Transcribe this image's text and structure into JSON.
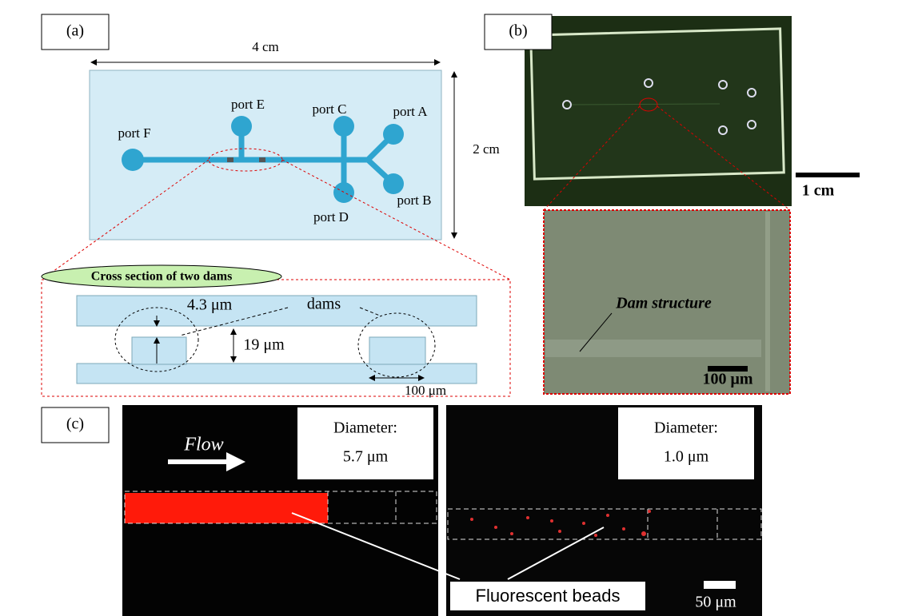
{
  "panel_a": {
    "label": "(a)",
    "width": "4 cm",
    "height": "2 cm",
    "ports": [
      "port E",
      "port C",
      "port A",
      "port F",
      "port D",
      "port B"
    ],
    "cross_section": {
      "title": "Cross section of two dams",
      "gap": "4.3 μm",
      "dams": "dams",
      "depth": "19 μm",
      "length": "100 μm"
    }
  },
  "panel_b": {
    "label": "(b)",
    "scale_top": "1 cm",
    "annotation": "Dam structure",
    "scale_bottom": "100 μm"
  },
  "panel_c": {
    "label": "(c)",
    "flow": "Flow",
    "left": {
      "caption": "Diameter:",
      "diameter": "5.7 μm"
    },
    "right": {
      "caption": "Diameter:",
      "diameter": "1.0 μm"
    },
    "beads": "Fluorescent beads",
    "scale": "50 μm"
  }
}
